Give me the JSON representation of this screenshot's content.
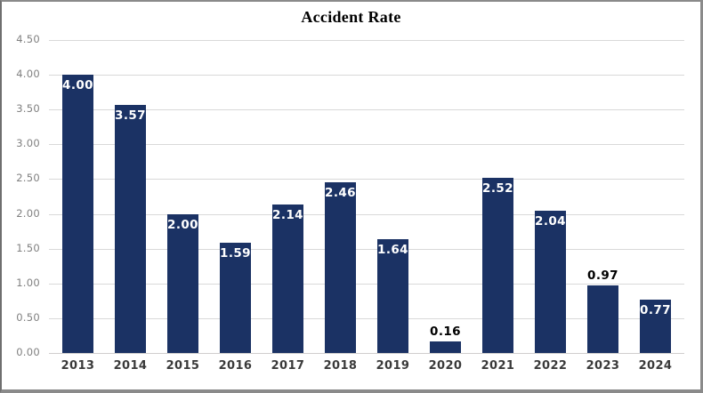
{
  "chart_data": {
    "type": "bar",
    "title": "Accident Rate",
    "xlabel": "",
    "ylabel": "",
    "ylim": [
      0,
      4.5
    ],
    "y_tick_step": 0.5,
    "y_tick_labels": [
      "0.00",
      "0.50",
      "1.00",
      "1.50",
      "2.00",
      "2.50",
      "3.00",
      "3.50",
      "4.00",
      "4.50"
    ],
    "grid": true,
    "legend": "none",
    "categories": [
      "2013",
      "2014",
      "2015",
      "2016",
      "2017",
      "2018",
      "2019",
      "2020",
      "2021",
      "2022",
      "2023",
      "2024"
    ],
    "values": [
      4.0,
      3.57,
      2.0,
      1.59,
      2.14,
      2.46,
      1.64,
      0.16,
      2.52,
      2.04,
      0.97,
      0.77
    ],
    "data_labels": [
      "4.00",
      "3.57",
      "2.00",
      "1.59",
      "2.14",
      "2.46",
      "1.64",
      "0.16",
      "2.52",
      "2.04",
      "0.97",
      "0.77"
    ],
    "label_placements": [
      "inside",
      "inside",
      "inside",
      "inside",
      "inside",
      "inside",
      "inside",
      "outside",
      "inside",
      "inside",
      "outside",
      "inside"
    ],
    "colors": {
      "bar": "#1B3264",
      "gridline": "#D9D9D9",
      "axis_line": "#D0CECE",
      "y_tick_text": "#808080",
      "x_tick_text": "#3A3A3A",
      "label_inside": "#FFFFFF",
      "label_outside": "#000000",
      "title_text": "#000000",
      "frame_border": "#8A8A8A",
      "background": "#FFFFFF"
    }
  }
}
